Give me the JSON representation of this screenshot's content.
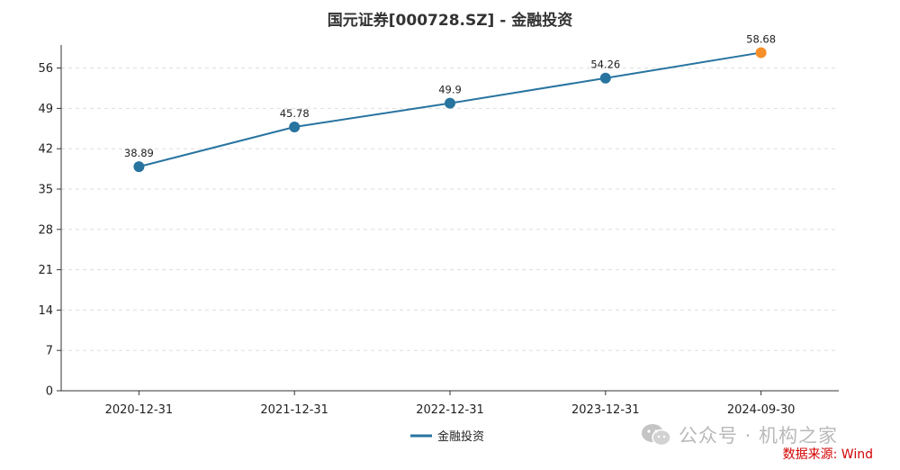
{
  "chart_data": {
    "type": "line",
    "title": "国元证券[000728.SZ] - 金融投资",
    "categories": [
      "2020-12-31",
      "2021-12-31",
      "2022-12-31",
      "2023-12-31",
      "2024-09-30"
    ],
    "series": [
      {
        "name": "金融投资",
        "values": [
          38.89,
          45.78,
          49.9,
          54.26,
          58.68
        ]
      }
    ],
    "value_labels": [
      "38.89",
      "45.78",
      "49.9",
      "54.26",
      "58.68"
    ],
    "ylim": [
      0,
      60
    ],
    "yticks": [
      0,
      7,
      14,
      21,
      28,
      35,
      42,
      49,
      56
    ],
    "grid": true,
    "legend_position": "bottom-center",
    "line_color": "#2874a0",
    "highlight_color": "#f7902a",
    "xlabel": "",
    "ylabel": ""
  },
  "watermark": "公众号 · 机构之家",
  "source": "数据来源: Wind"
}
